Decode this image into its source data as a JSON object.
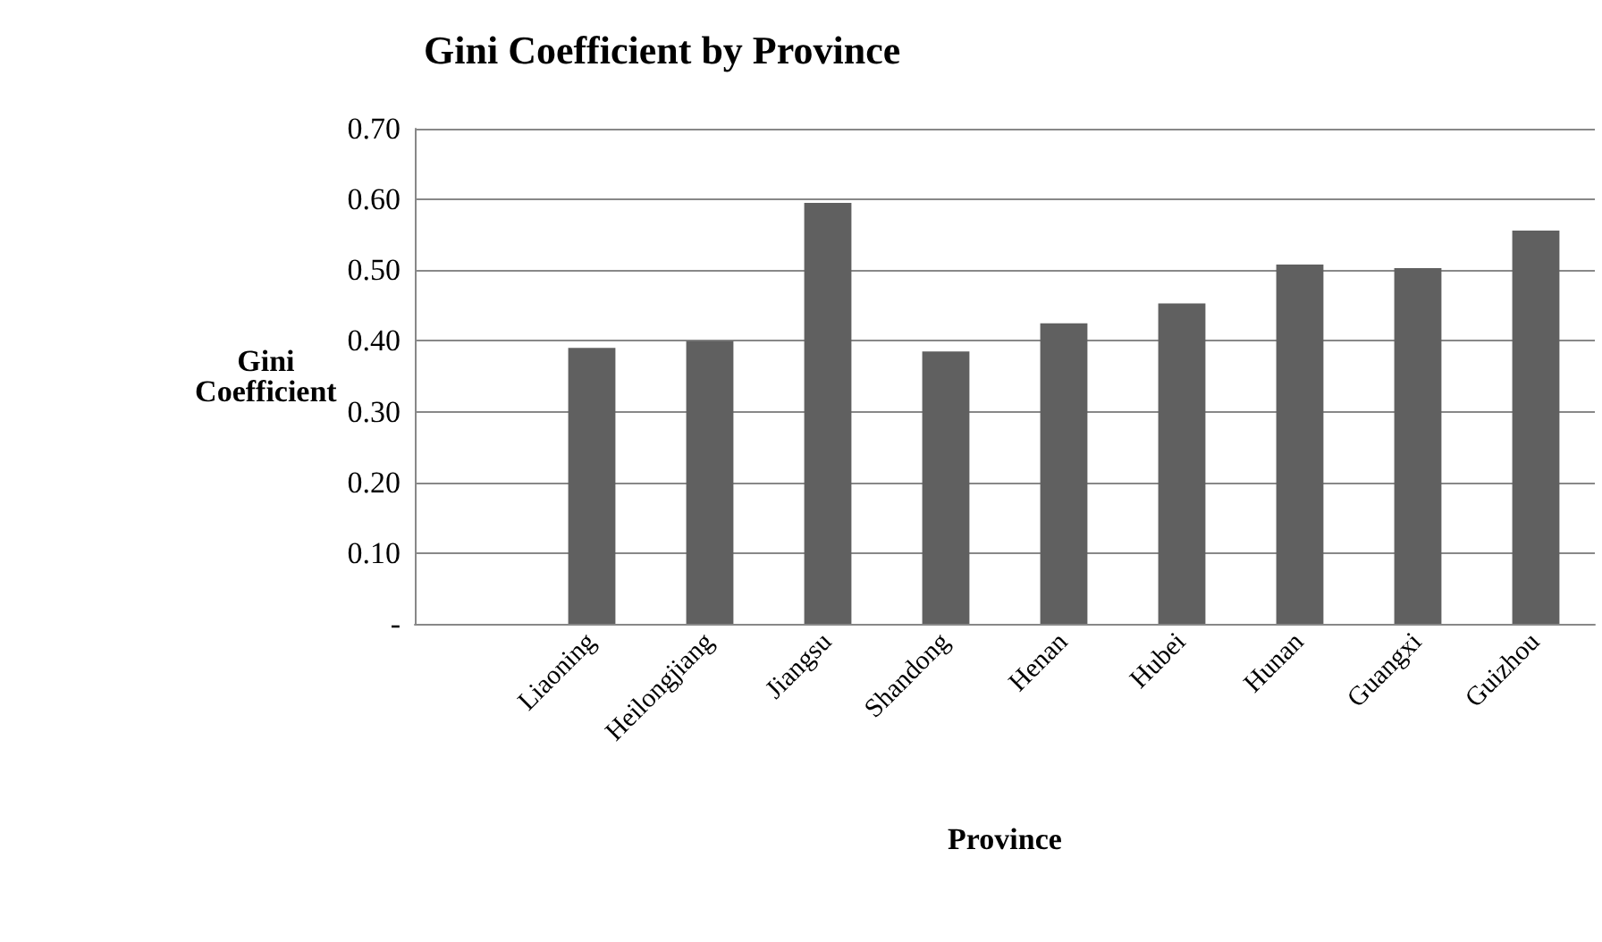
{
  "chart_data": {
    "type": "bar",
    "title": "Gini Coefficient by Province",
    "xlabel": "Province",
    "ylabel": "Gini Coefficient",
    "categories": [
      null,
      "Liaoning",
      "Heilongjiang",
      "Jiangsu",
      "Shandong",
      "Henan",
      "Hubei",
      "Hunan",
      "Guangxi",
      "Guizhou"
    ],
    "values": [
      null,
      0.39,
      0.4,
      0.595,
      0.385,
      0.425,
      0.453,
      0.508,
      0.503,
      0.556
    ],
    "color": "#606060",
    "ylim": [
      0,
      0.7
    ],
    "yticks": [
      {
        "value": 0,
        "label": "-"
      },
      {
        "value": 0.1,
        "label": "0.10"
      },
      {
        "value": 0.2,
        "label": "0.20"
      },
      {
        "value": 0.3,
        "label": "0.30"
      },
      {
        "value": 0.4,
        "label": "0.40"
      },
      {
        "value": 0.5,
        "label": "0.50"
      },
      {
        "value": 0.6,
        "label": "0.60"
      },
      {
        "value": 0.7,
        "label": "0.70"
      }
    ],
    "grid": "y"
  }
}
